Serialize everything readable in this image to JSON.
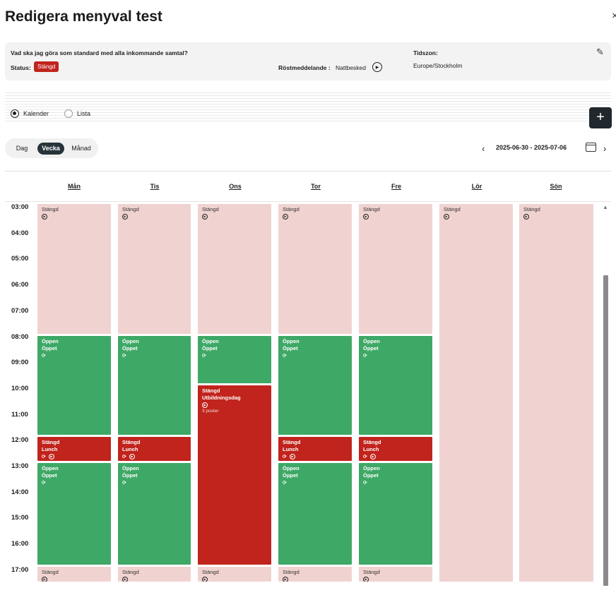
{
  "page": {
    "title": "Redigera menyval test",
    "close": "×"
  },
  "info": {
    "question": "Vad ska jag göra som standard med alla inkommande samtal?",
    "status_label": "Status:",
    "status_value": "Stängd",
    "voicemail_label": "Röstmeddelande :",
    "voicemail_value": "Nattbesked",
    "timezone_label": "Tidszon:",
    "timezone_value": "Europe/Stockholm",
    "edit_icon": "pencil-icon"
  },
  "view": {
    "calendar_label": "Kalender",
    "list_label": "Lista",
    "add_label": "+",
    "modes": [
      "Dag",
      "Vecka",
      "Månad"
    ],
    "active_mode": "Vecka",
    "date_range": "2025-06-30 - 2025-07-06",
    "prev": "‹",
    "next": "›"
  },
  "days": [
    "Mån",
    "Tis",
    "Ons",
    "Tor",
    "Fre",
    "Lör",
    "Sön"
  ],
  "hours": [
    "03:00",
    "04:00",
    "05:00",
    "06:00",
    "07:00",
    "08:00",
    "09:00",
    "10:00",
    "11:00",
    "12:00",
    "13:00",
    "14:00",
    "15:00",
    "16:00",
    "17:00"
  ],
  "colors": {
    "closed_block": "#f0d3d1",
    "open_block": "#3ea866",
    "closed_event": "#c0241c",
    "primary_button": "#20282d"
  },
  "events": [
    {
      "day": 0,
      "start": 3.0,
      "end": 8.1,
      "kind": "closed",
      "lines": [
        "Stängd"
      ],
      "icons": [
        "play"
      ]
    },
    {
      "day": 0,
      "start": 8.1,
      "end": 12.0,
      "kind": "open",
      "lines": [
        "Öppen",
        "Öppet"
      ],
      "icons": [
        "repeat"
      ]
    },
    {
      "day": 0,
      "start": 12.0,
      "end": 13.0,
      "kind": "red",
      "lines": [
        "Stängd",
        "Lunch"
      ],
      "icons": [
        "repeat",
        "play"
      ]
    },
    {
      "day": 0,
      "start": 13.0,
      "end": 17.0,
      "kind": "open",
      "lines": [
        "Öppen",
        "Öppet"
      ],
      "icons": [
        "repeat"
      ]
    },
    {
      "day": 0,
      "start": 17.0,
      "end": 17.65,
      "kind": "closed",
      "lines": [
        "Stängd"
      ],
      "icons": [
        "play"
      ]
    },
    {
      "day": 1,
      "start": 3.0,
      "end": 8.1,
      "kind": "closed",
      "lines": [
        "Stängd"
      ],
      "icons": [
        "play"
      ]
    },
    {
      "day": 1,
      "start": 8.1,
      "end": 12.0,
      "kind": "open",
      "lines": [
        "Öppen",
        "Öppet"
      ],
      "icons": [
        "repeat"
      ]
    },
    {
      "day": 1,
      "start": 12.0,
      "end": 13.0,
      "kind": "red",
      "lines": [
        "Stängd",
        "Lunch"
      ],
      "icons": [
        "repeat",
        "play"
      ]
    },
    {
      "day": 1,
      "start": 13.0,
      "end": 17.0,
      "kind": "open",
      "lines": [
        "Öppen",
        "Öppet"
      ],
      "icons": [
        "repeat"
      ]
    },
    {
      "day": 1,
      "start": 17.0,
      "end": 17.65,
      "kind": "closed",
      "lines": [
        "Stängd"
      ],
      "icons": [
        "play"
      ]
    },
    {
      "day": 2,
      "start": 3.0,
      "end": 8.1,
      "kind": "closed",
      "lines": [
        "Stängd"
      ],
      "icons": [
        "play"
      ]
    },
    {
      "day": 2,
      "start": 8.1,
      "end": 10.0,
      "kind": "open",
      "lines": [
        "Öppen",
        "Öppet"
      ],
      "icons": [
        "repeat"
      ]
    },
    {
      "day": 2,
      "start": 10.0,
      "end": 17.0,
      "kind": "red",
      "lines": [
        "Stängd",
        "Utbildningsdag"
      ],
      "icons": [
        "play"
      ],
      "sub": "3 poster"
    },
    {
      "day": 2,
      "start": 17.0,
      "end": 17.65,
      "kind": "closed",
      "lines": [
        "Stängd"
      ],
      "icons": [
        "play"
      ]
    },
    {
      "day": 3,
      "start": 3.0,
      "end": 8.1,
      "kind": "closed",
      "lines": [
        "Stängd"
      ],
      "icons": [
        "play"
      ]
    },
    {
      "day": 3,
      "start": 8.1,
      "end": 12.0,
      "kind": "open",
      "lines": [
        "Öppen",
        "Öppet"
      ],
      "icons": [
        "repeat"
      ]
    },
    {
      "day": 3,
      "start": 12.0,
      "end": 13.0,
      "kind": "red",
      "lines": [
        "Stängd",
        "Lunch"
      ],
      "icons": [
        "repeat",
        "play"
      ]
    },
    {
      "day": 3,
      "start": 13.0,
      "end": 17.0,
      "kind": "open",
      "lines": [
        "Öppen",
        "Öppet"
      ],
      "icons": [
        "repeat"
      ]
    },
    {
      "day": 3,
      "start": 17.0,
      "end": 17.65,
      "kind": "closed",
      "lines": [
        "Stängd"
      ],
      "icons": [
        "play"
      ]
    },
    {
      "day": 4,
      "start": 3.0,
      "end": 8.1,
      "kind": "closed",
      "lines": [
        "Stängd"
      ],
      "icons": [
        "play"
      ]
    },
    {
      "day": 4,
      "start": 8.1,
      "end": 12.0,
      "kind": "open",
      "lines": [
        "Öppen",
        "Öppet"
      ],
      "icons": [
        "repeat"
      ]
    },
    {
      "day": 4,
      "start": 12.0,
      "end": 13.0,
      "kind": "red",
      "lines": [
        "Stängd",
        "Lunch"
      ],
      "icons": [
        "repeat",
        "play"
      ]
    },
    {
      "day": 4,
      "start": 13.0,
      "end": 17.0,
      "kind": "open",
      "lines": [
        "Öppen",
        "Öppet"
      ],
      "icons": [
        "repeat"
      ]
    },
    {
      "day": 4,
      "start": 17.0,
      "end": 17.65,
      "kind": "closed",
      "lines": [
        "Stängd"
      ],
      "icons": [
        "play"
      ]
    },
    {
      "day": 5,
      "start": 3.0,
      "end": 17.65,
      "kind": "closed",
      "lines": [
        "Stängd"
      ],
      "icons": [
        "play"
      ]
    },
    {
      "day": 6,
      "start": 3.0,
      "end": 17.65,
      "kind": "closed",
      "lines": [
        "Stängd"
      ],
      "icons": [
        "play"
      ]
    }
  ]
}
